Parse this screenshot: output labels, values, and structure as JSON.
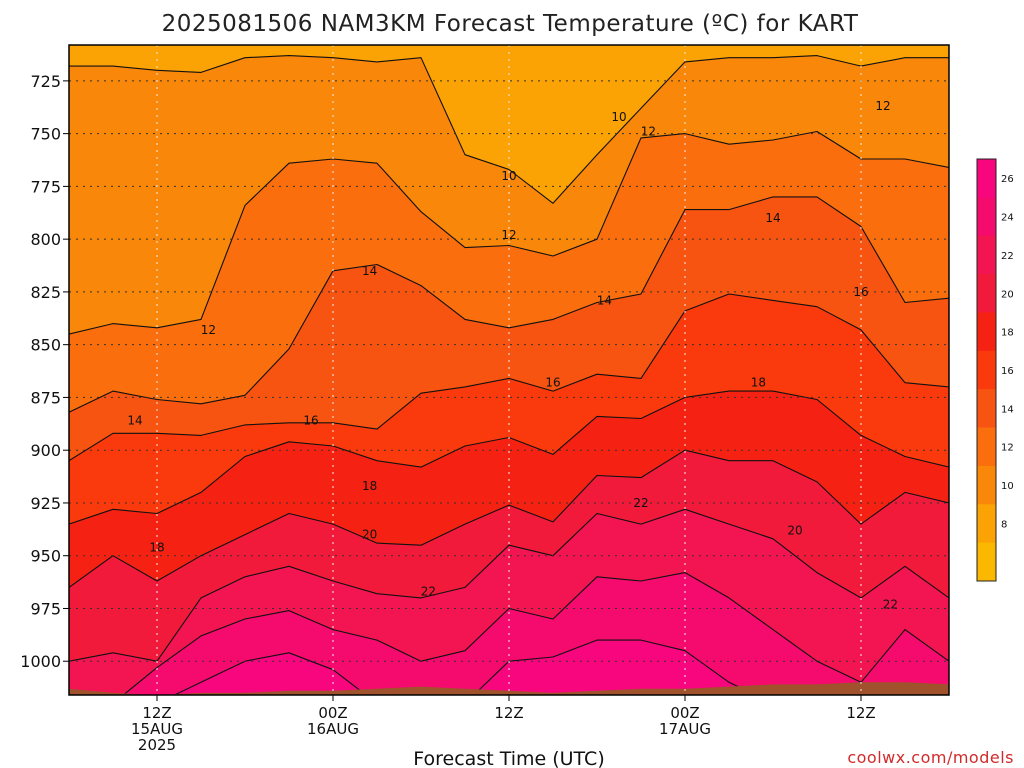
{
  "title": "2025081506 NAM3KM Forecast Temperature (ºC) for KART",
  "credit": "coolwx.com/models",
  "chart_data": {
    "type": "heatmap",
    "title": "2025081506 NAM3KM Forecast Temperature (ºC) for KART",
    "xlabel": "Forecast Time (UTC)",
    "ylabel": "",
    "y_ticks": [
      725,
      750,
      775,
      800,
      825,
      850,
      875,
      900,
      925,
      950,
      975,
      1000
    ],
    "ylim": [
      1016,
      708
    ],
    "x_ticks": [
      {
        "hour": 12,
        "lines": [
          "12Z",
          "15AUG",
          "2025"
        ]
      },
      {
        "hour": 24,
        "lines": [
          "00Z",
          "16AUG"
        ]
      },
      {
        "hour": 36,
        "lines": [
          "12Z"
        ]
      },
      {
        "hour": 48,
        "lines": [
          "00Z",
          "17AUG"
        ]
      },
      {
        "hour": 60,
        "lines": [
          "12Z"
        ]
      }
    ],
    "xlim": [
      6,
      66
    ],
    "surface_pressure": [
      1013,
      1015,
      1016,
      1015,
      1015,
      1014,
      1014,
      1013,
      1012,
      1013,
      1014,
      1015,
      1014,
      1013,
      1013,
      1012,
      1011,
      1011,
      1010,
      1010,
      1011
    ],
    "grid": true,
    "series": [
      {
        "name": "10",
        "values": [
          718,
          718,
          720,
          721,
          714,
          713,
          714,
          716,
          714,
          760,
          767,
          783,
          760,
          738,
          716,
          714,
          714,
          713,
          718,
          714,
          714
        ]
      },
      {
        "name": "12",
        "values": [
          845,
          840,
          842,
          838,
          784,
          764,
          762,
          764,
          787,
          804,
          803,
          808,
          800,
          752,
          750,
          755,
          753,
          749,
          762,
          762,
          766
        ]
      },
      {
        "name": "14",
        "values": [
          882,
          872,
          876,
          878,
          874,
          852,
          815,
          812,
          822,
          838,
          842,
          838,
          830,
          826,
          786,
          786,
          780,
          780,
          794,
          830,
          828
        ]
      },
      {
        "name": "16",
        "values": [
          905,
          892,
          892,
          893,
          888,
          887,
          887,
          890,
          873,
          870,
          866,
          872,
          864,
          866,
          834,
          826,
          829,
          832,
          843,
          868,
          870
        ]
      },
      {
        "name": "18",
        "values": [
          935,
          928,
          930,
          920,
          903,
          896,
          898,
          905,
          908,
          898,
          894,
          902,
          884,
          885,
          875,
          872,
          872,
          876,
          893,
          903,
          908
        ]
      },
      {
        "name": "20",
        "values": [
          965,
          950,
          962,
          950,
          940,
          930,
          935,
          944,
          945,
          935,
          926,
          934,
          912,
          913,
          900,
          905,
          905,
          915,
          935,
          920,
          925
        ]
      },
      {
        "name": "22",
        "values": [
          1000,
          996,
          1000,
          970,
          960,
          955,
          962,
          968,
          970,
          965,
          945,
          950,
          930,
          935,
          928,
          935,
          942,
          958,
          970,
          955,
          970
        ]
      },
      {
        "name": "24",
        "values": [
          1020,
          1020,
          1003,
          988,
          980,
          976,
          985,
          990,
          1000,
          995,
          975,
          980,
          960,
          962,
          958,
          970,
          985,
          1000,
          1010,
          985,
          1000
        ]
      },
      {
        "name": "26",
        "values": [
          1020,
          1020,
          1020,
          1010,
          1000,
          996,
          1004,
          1020,
          1020,
          1020,
          1000,
          998,
          990,
          990,
          995,
          1010,
          1020,
          1020,
          1020,
          1020,
          1020
        ]
      }
    ],
    "colorbar": {
      "labels": [
        "26",
        "24",
        "22",
        "20",
        "18",
        "16",
        "14",
        "12",
        "10",
        "8"
      ],
      "colors": [
        "#f7067e",
        "#f50a6e",
        "#f31452",
        "#f21a3a",
        "#f52214",
        "#fa3a0c",
        "#f75412",
        "#fb6e0e",
        "#f9870a",
        "#fba204",
        "#fbb800"
      ]
    },
    "fill_colors": [
      "#fba204",
      "#f9870a",
      "#fb6e0e",
      "#f75412",
      "#fa3a0c",
      "#f52214",
      "#f21a3a",
      "#f31452",
      "#f50a6e",
      "#f7067e"
    ],
    "contour_labels": [
      {
        "text": "10",
        "hour": 43.5,
        "p": 742
      },
      {
        "text": "10",
        "hour": 36,
        "p": 770
      },
      {
        "text": "12",
        "hour": 45.5,
        "p": 749
      },
      {
        "text": "12",
        "hour": 36,
        "p": 798
      },
      {
        "text": "12",
        "hour": 15.5,
        "p": 843
      },
      {
        "text": "12",
        "hour": 61.5,
        "p": 737
      },
      {
        "text": "14",
        "hour": 26.5,
        "p": 815
      },
      {
        "text": "14",
        "hour": 42.5,
        "p": 829
      },
      {
        "text": "14",
        "hour": 10.5,
        "p": 886
      },
      {
        "text": "14",
        "hour": 54,
        "p": 790
      },
      {
        "text": "16",
        "hour": 22.5,
        "p": 886
      },
      {
        "text": "16",
        "hour": 39,
        "p": 868
      },
      {
        "text": "16",
        "hour": 60,
        "p": 825
      },
      {
        "text": "18",
        "hour": 26.5,
        "p": 917
      },
      {
        "text": "18",
        "hour": 12,
        "p": 946
      },
      {
        "text": "18",
        "hour": 53,
        "p": 868
      },
      {
        "text": "20",
        "hour": 26.5,
        "p": 940
      },
      {
        "text": "20",
        "hour": 55.5,
        "p": 938
      },
      {
        "text": "22",
        "hour": 30.5,
        "p": 967
      },
      {
        "text": "22",
        "hour": 45,
        "p": 925
      },
      {
        "text": "22",
        "hour": 62,
        "p": 973
      }
    ]
  }
}
